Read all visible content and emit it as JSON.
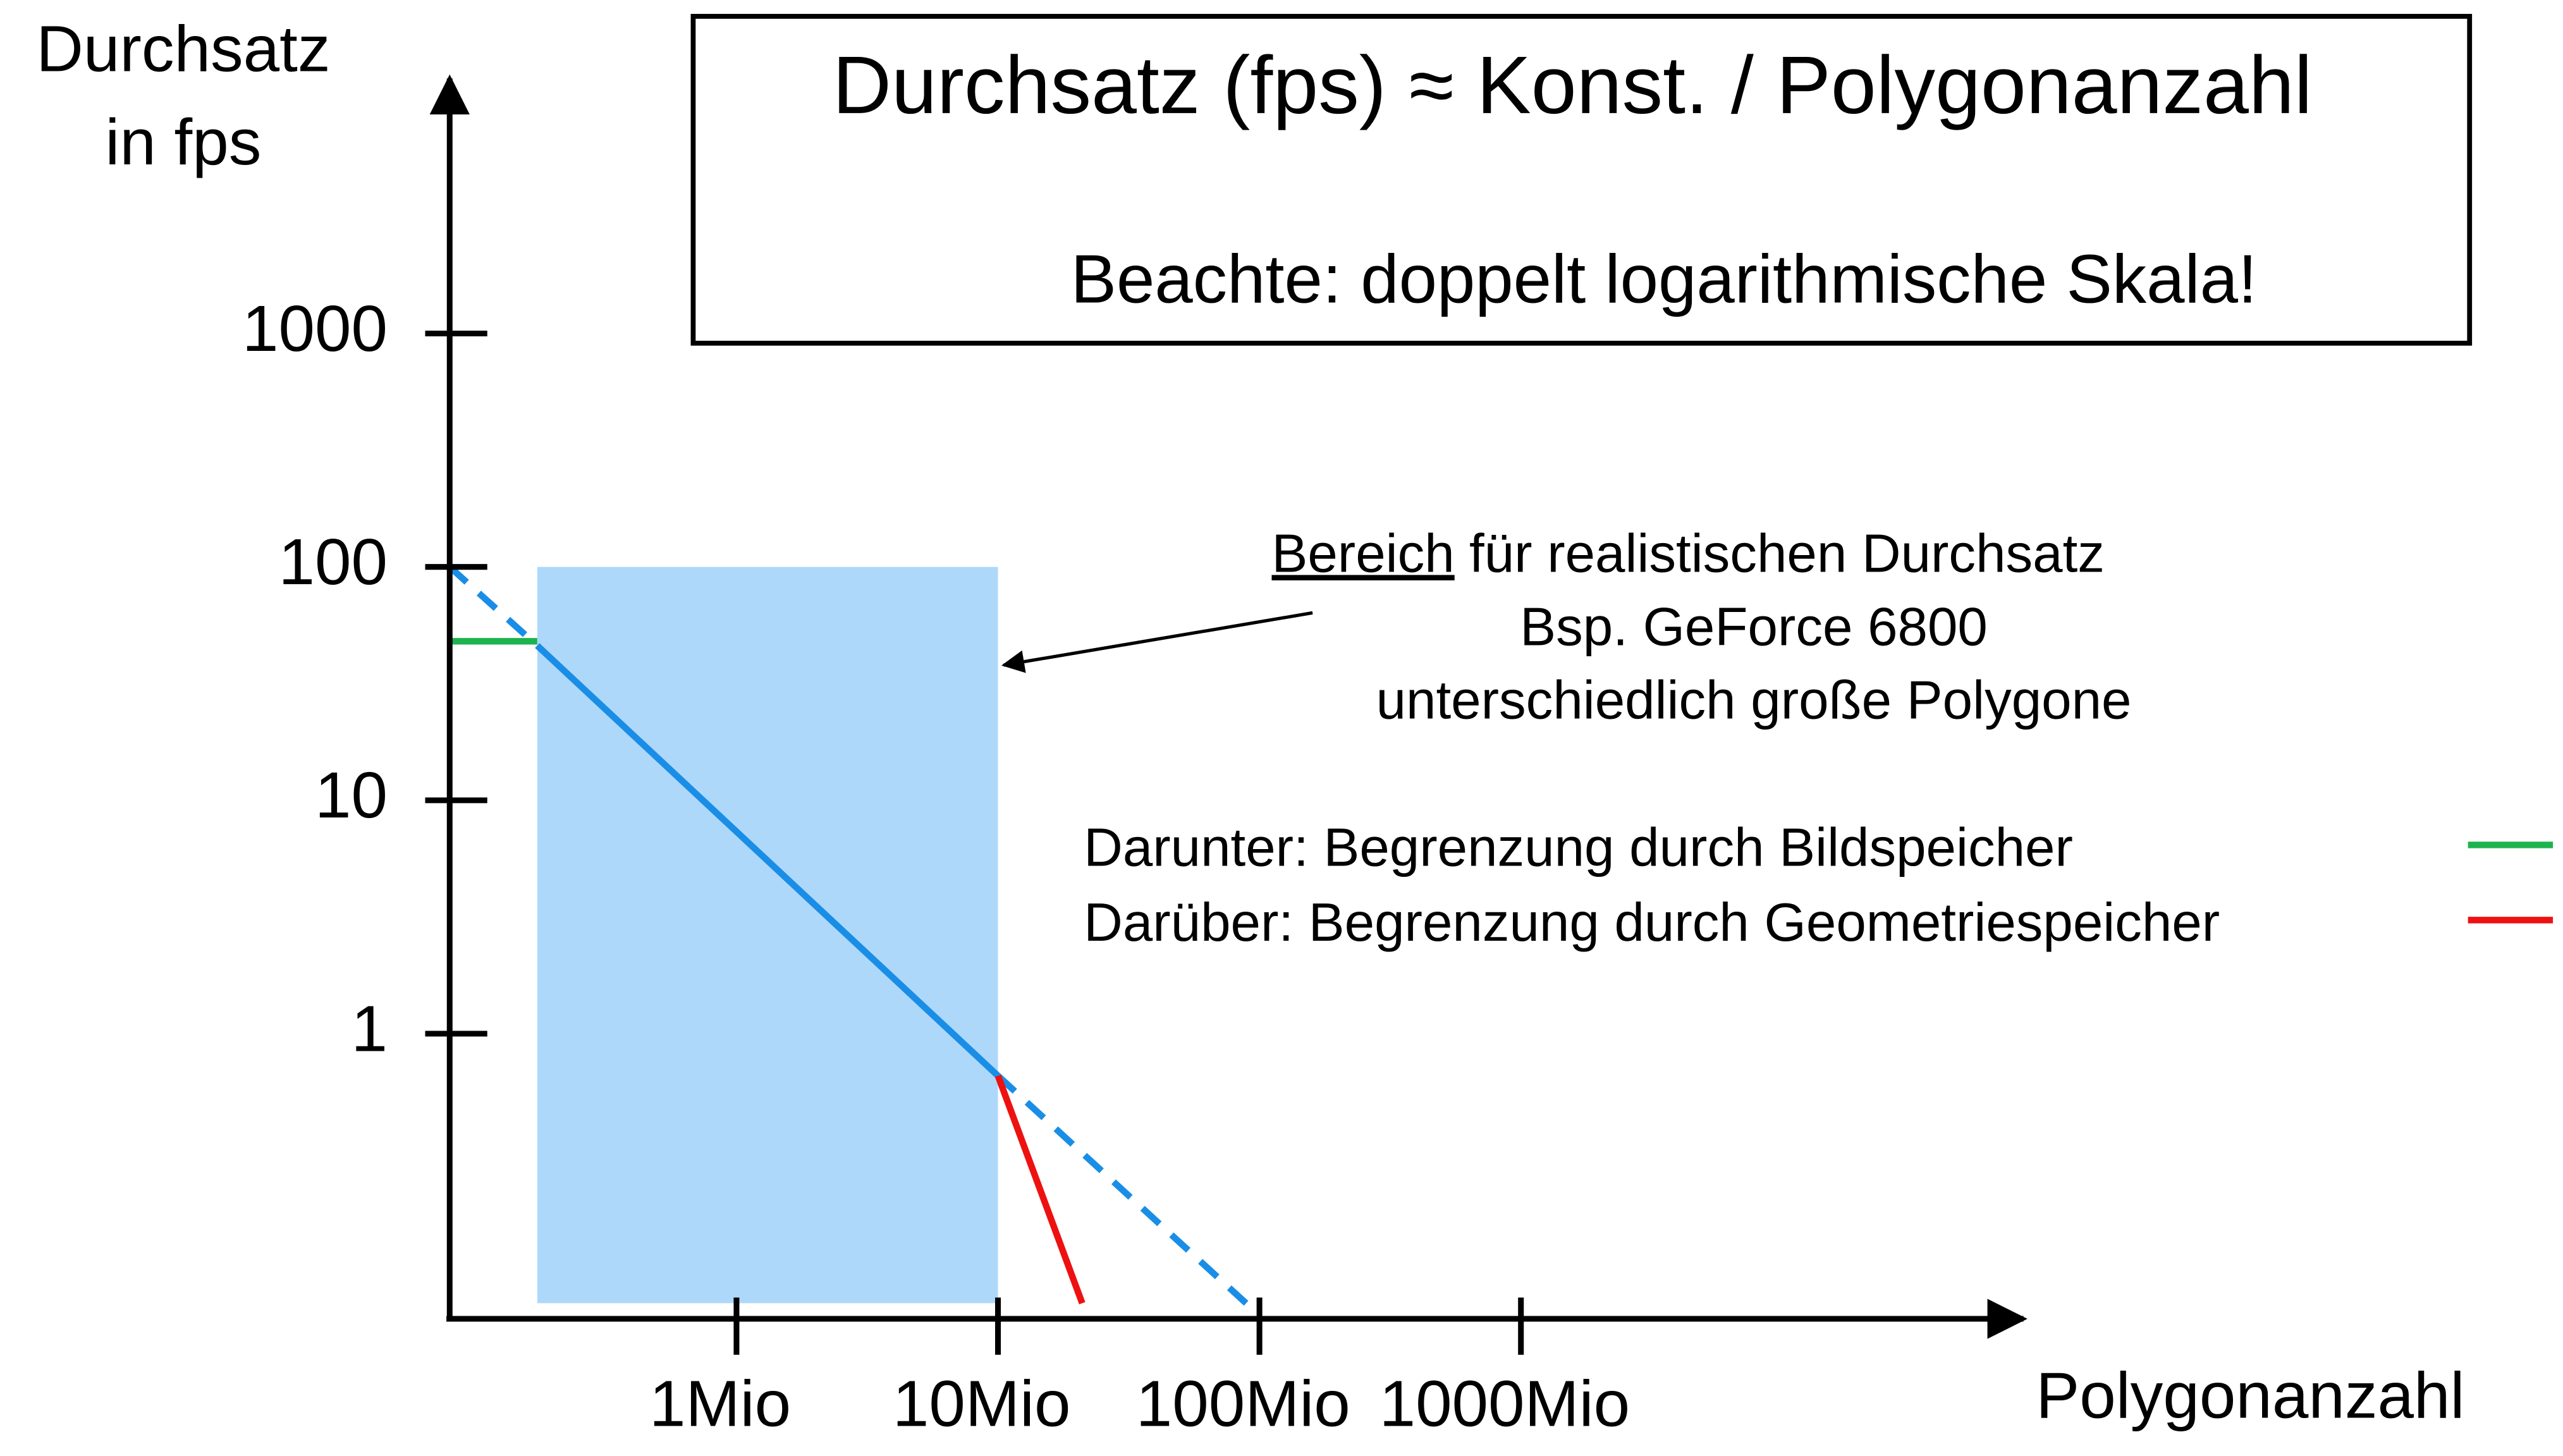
{
  "chart_data": {
    "type": "line",
    "title": "Durchsatz (fps)  ≈ Konst. / Polygonanzahl",
    "subtitle": "Beachte: doppelt logarithmische Skala!",
    "y_label": [
      "Durchsatz",
      "in fps"
    ],
    "x_label": "Polygonanzahl",
    "annotation": {
      "underlined": "Bereich",
      "lines": [
        "für realistischen Durchsatz",
        "Bsp. GeForce 6800",
        "unterschiedlich große Polygone"
      ]
    },
    "log_x": true,
    "log_y": true,
    "xlim": [
      80000,
      80000000000
    ],
    "ylim": [
      0.06,
      13000
    ],
    "xticks": [
      {
        "value": 1000000,
        "label": "1Mio"
      },
      {
        "value": 10000000,
        "label": "10Mio"
      },
      {
        "value": 100000000,
        "label": "100Mio"
      },
      {
        "value": 1000000000,
        "label": "1000Mio"
      }
    ],
    "yticks": [
      1,
      10,
      100,
      1000
    ],
    "region": {
      "color": "#aed8fa",
      "x": [
        173000,
        10000000
      ],
      "y": [
        0.07,
        100
      ]
    },
    "series": [
      {
        "color": "#1a8ee6",
        "style": "solid",
        "x": [
          173000,
          10000000
        ],
        "values": [
          46,
          0.66
        ]
      },
      {
        "color": "#1a8ee6",
        "style": "dashed",
        "x": [
          80000,
          173000,
          null,
          10000000,
          100000000
        ],
        "values": [
          100,
          46,
          null,
          0.66,
          0.062
        ]
      },
      {
        "name": "Darunter: Begrenzung durch Bildspeicher",
        "color": "#1db34f",
        "style": "solid",
        "x": [
          80000,
          173000
        ],
        "values": [
          48,
          48
        ]
      },
      {
        "name": "Darüber: Begrenzung durch Geometriespeicher",
        "color": "#ee1111",
        "style": "solid",
        "x": [
          10000000,
          21000000
        ],
        "values": [
          0.66,
          0.07
        ]
      }
    ]
  }
}
